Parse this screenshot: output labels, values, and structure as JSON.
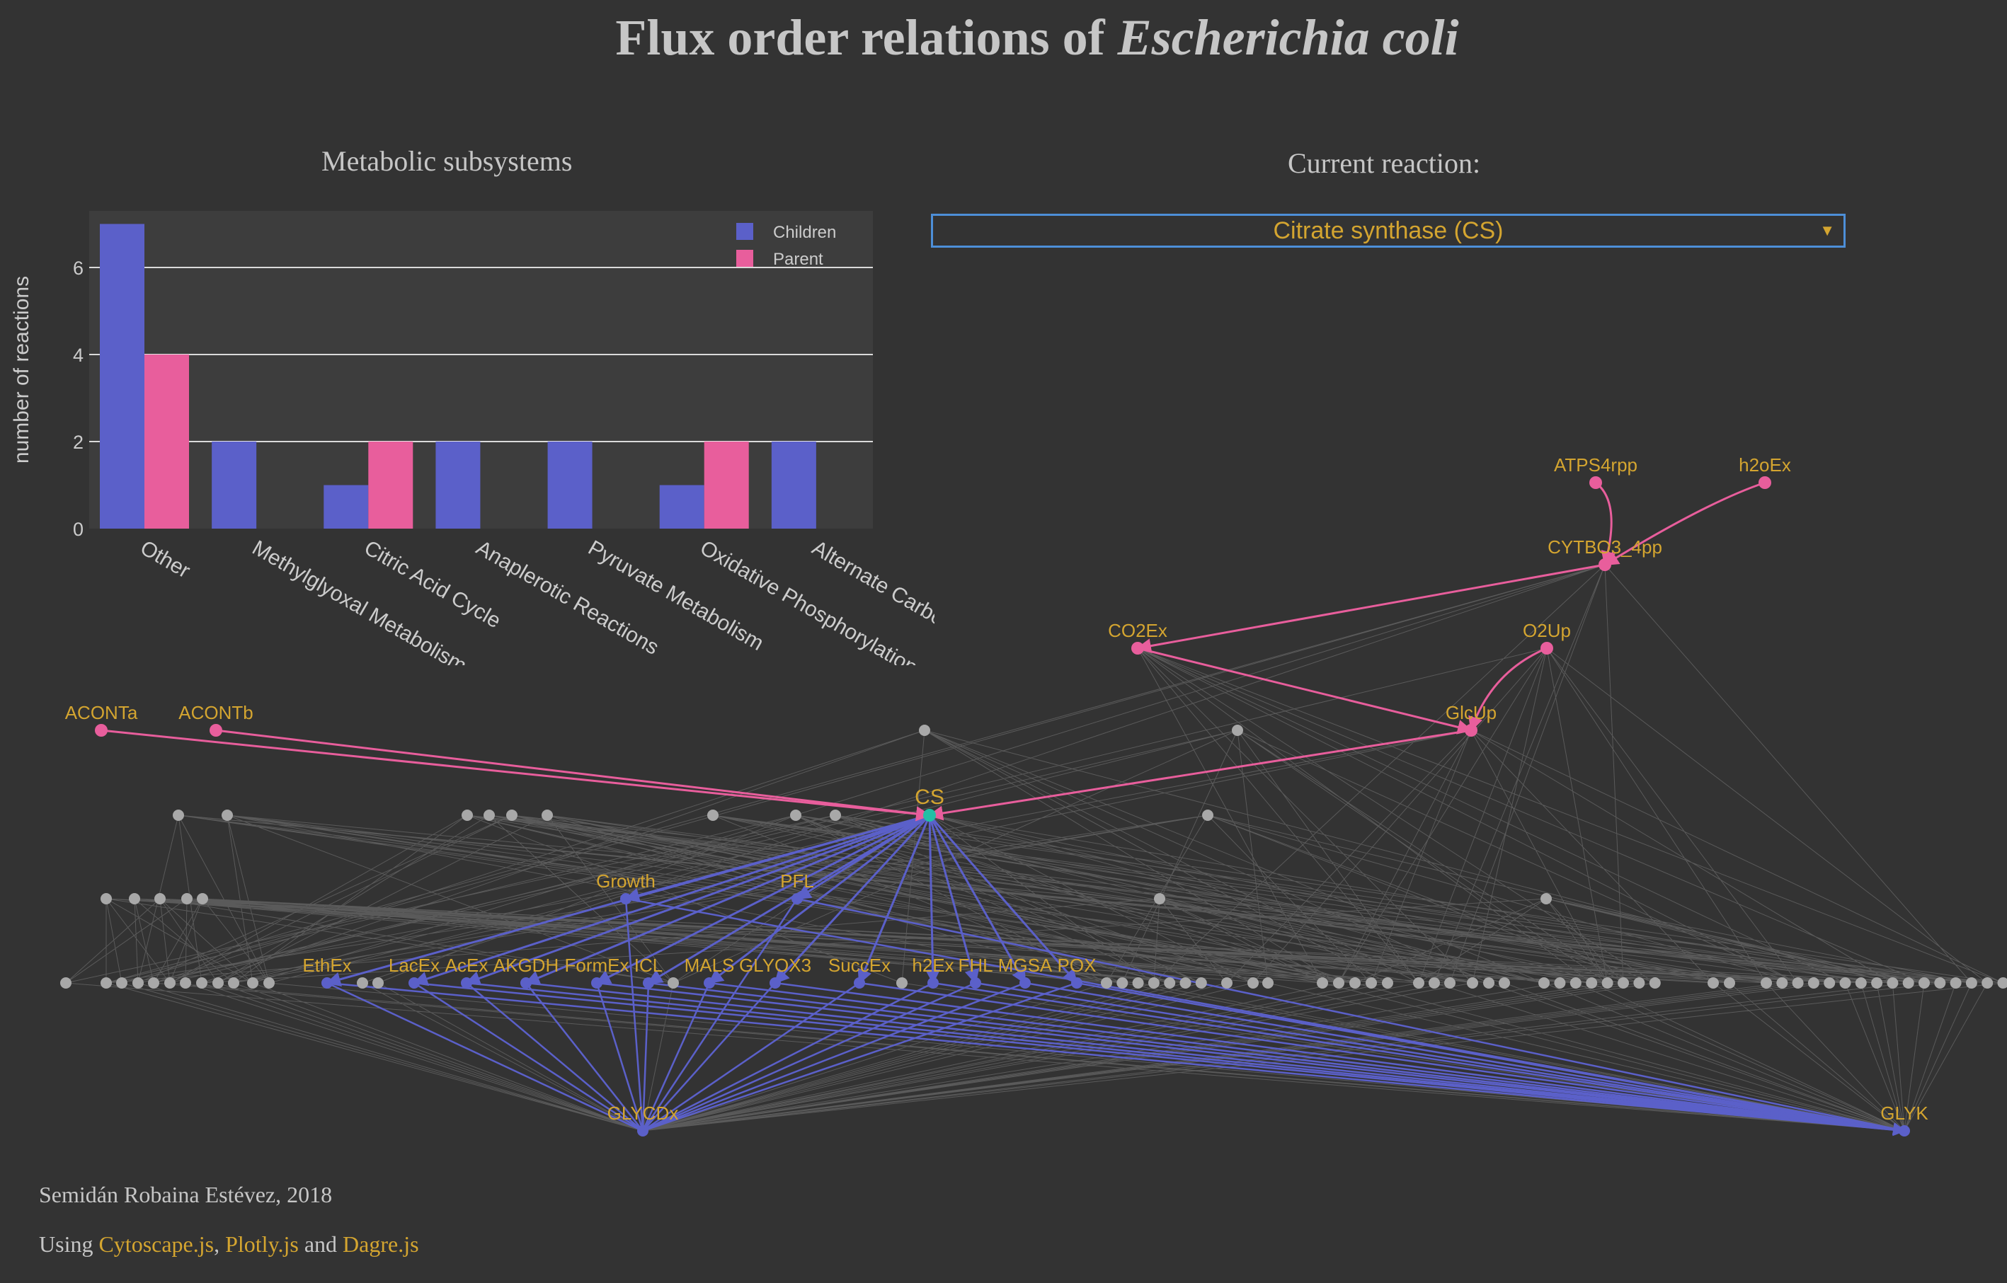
{
  "page": {
    "title_prefix": "Flux order relations of ",
    "title_species": "Escherichia coli"
  },
  "bar_panel": {
    "title": "Metabolic subsystems"
  },
  "reaction_panel": {
    "title": "Current reaction:",
    "selected": "Citrate synthase (CS)"
  },
  "colors": {
    "background": "#333333",
    "plot_bg": "#3d3d3d",
    "children": "#5b60c9",
    "parent": "#e85e9c",
    "accent": "#d4a530",
    "current_node": "#21c0a5",
    "neutral_node": "#a8a8a8"
  },
  "chart_data": {
    "type": "bar",
    "title": "Metabolic subsystems",
    "xlabel": "",
    "ylabel": "number of reactions",
    "ylim": [
      0,
      7.3
    ],
    "yticks": [
      0,
      2,
      4,
      6
    ],
    "grid": true,
    "legend_position": "top-right",
    "categories": [
      "Other",
      "Methylglyoxal Metabolism",
      "Citric Acid Cycle",
      "Anaplerotic Reactions",
      "Pyruvate Metabolism",
      "Oxidative Phosphorylation",
      "Alternate Carbo"
    ],
    "series": [
      {
        "name": "Children",
        "values": [
          7,
          2,
          1,
          2,
          2,
          1,
          2
        ]
      },
      {
        "name": "Parent",
        "values": [
          4,
          0,
          2,
          0,
          0,
          2,
          0
        ]
      }
    ]
  },
  "network": {
    "current": "CS",
    "parents": [
      "ACONTa",
      "ACONTb",
      "ATPS4rpp",
      "h2oEx",
      "CYTBO3_4pp",
      "CO2Ex",
      "O2Up",
      "GlcUp"
    ],
    "children": [
      "Growth",
      "PFL",
      "EthEx",
      "LacEx",
      "AcEx",
      "AKGDH",
      "FormEx",
      "ICL",
      "MALS",
      "GLYOX3",
      "SuccEx",
      "h2Ex",
      "FHL",
      "MGSA",
      "POX",
      "GLYCDx",
      "GLYK"
    ]
  },
  "footer": {
    "credit": "Semidán Robaina Estévez, 2018",
    "using_prefix": "Using ",
    "link1": "Cytoscape.js",
    "sep1": ", ",
    "link2": "Plotly.js",
    "sep2": " and ",
    "link3": "Dagre.js"
  }
}
